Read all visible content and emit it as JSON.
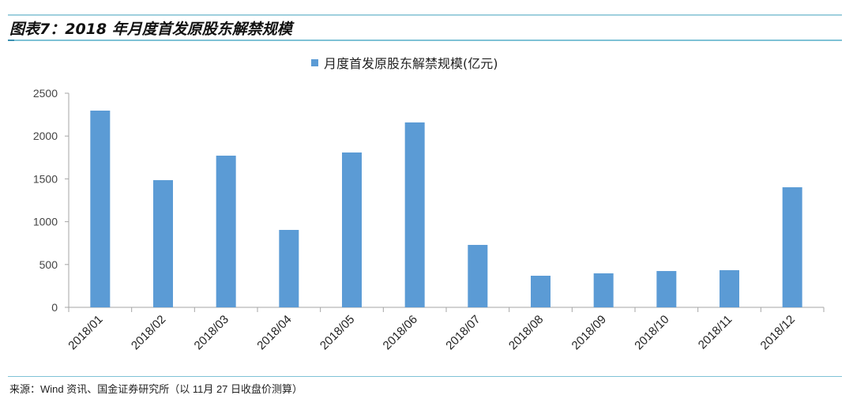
{
  "header": {
    "title": "图表7：2018 年月度首发原股东解禁规模"
  },
  "footer": {
    "source": "来源：Wind 资讯、国金证券研究所（以 11月 27 日收盘价测算）"
  },
  "chart_data": {
    "type": "bar",
    "title": "",
    "categories": [
      "2018/01",
      "2018/02",
      "2018/03",
      "2018/04",
      "2018/05",
      "2018/06",
      "2018/07",
      "2018/08",
      "2018/09",
      "2018/10",
      "2018/11",
      "2018/12"
    ],
    "series": [
      {
        "name": "月度首发原股东解禁规模(亿元)",
        "values": [
          2297,
          1485,
          1771,
          904,
          1808,
          2159,
          729,
          369,
          397,
          424,
          434,
          1402
        ],
        "color": "#5b9bd5"
      }
    ],
    "ylim": [
      0,
      2500
    ],
    "yticks": [
      0,
      500,
      1000,
      1500,
      2000,
      2500
    ],
    "grid": false,
    "legend": "top-right",
    "xlabel": "",
    "ylabel": ""
  }
}
